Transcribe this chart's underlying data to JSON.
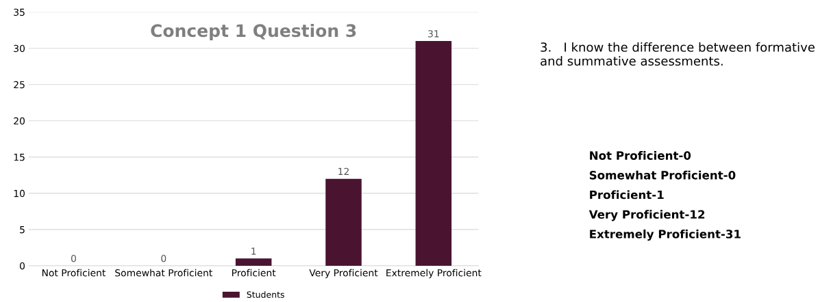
{
  "chart_data": {
    "type": "bar",
    "title": "Concept 1 Question 3",
    "categories": [
      "Not Proficient",
      "Somewhat Proficient",
      "Proficient",
      "Very Proficient",
      "Extremely Proficient"
    ],
    "series": [
      {
        "name": "Students",
        "color": "#4a1430",
        "values": [
          0,
          0,
          1,
          12,
          31
        ]
      }
    ],
    "ylim": [
      0,
      35
    ],
    "yticks": [
      0,
      5,
      10,
      15,
      20,
      25,
      30,
      35
    ],
    "grid": "y",
    "legend": "bottom",
    "data_labels": true,
    "annotations": [
      "3.   I know the difference between formative and summative assessments.",
      "Not Proficient-0",
      "Somewhat Proficient-0",
      "Proficient-1",
      "Very Proficient-12",
      "Extremely Proficient-31"
    ]
  }
}
